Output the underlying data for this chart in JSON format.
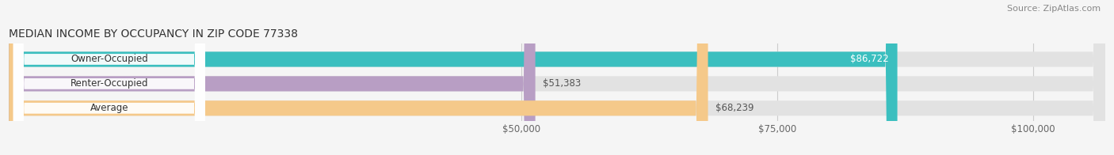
{
  "title": "MEDIAN INCOME BY OCCUPANCY IN ZIP CODE 77338",
  "source": "Source: ZipAtlas.com",
  "categories": [
    "Owner-Occupied",
    "Renter-Occupied",
    "Average"
  ],
  "values": [
    86722,
    51383,
    68239
  ],
  "bar_colors": [
    "#3bbfbf",
    "#b89ec4",
    "#f5c98a"
  ],
  "value_labels": [
    "$86,722",
    "$51,383",
    "$68,239"
  ],
  "xmin": 0,
  "xmax": 107000,
  "xticks": [
    50000,
    75000,
    100000
  ],
  "xtick_labels": [
    "$50,000",
    "$75,000",
    "$100,000"
  ],
  "background_color": "#f5f5f5",
  "bar_background_color": "#e2e2e2",
  "title_fontsize": 10,
  "source_fontsize": 8,
  "bar_height": 0.62
}
